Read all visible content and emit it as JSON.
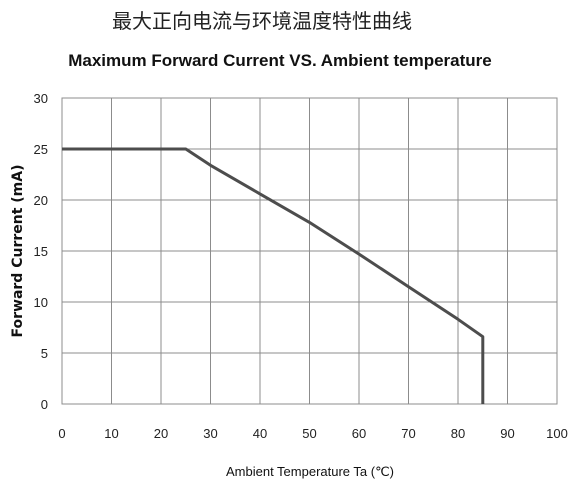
{
  "chart_data": {
    "type": "line",
    "title": "最大正向电流与环境温度特性曲线",
    "subtitle": "Maximum Forward Current VS. Ambient temperature",
    "xlabel": "Ambient Temperature Ta (℃)",
    "ylabel": "Forward Current (mA)",
    "xlim": [
      0,
      100
    ],
    "ylim": [
      0,
      30
    ],
    "x_ticks": [
      "0",
      "10",
      "20",
      "30",
      "40",
      "50",
      "60",
      "70",
      "80",
      "90",
      "100"
    ],
    "y_ticks": [
      "0",
      "5",
      "10",
      "15",
      "20",
      "25",
      "30"
    ],
    "grid": true,
    "legend": "none",
    "series": [
      {
        "color": "#4d4d4d",
        "points": [
          [
            0,
            25
          ],
          [
            25,
            25
          ],
          [
            30,
            23.4
          ],
          [
            40,
            20.6
          ],
          [
            50,
            17.8
          ],
          [
            60,
            14.7
          ],
          [
            70,
            11.5
          ],
          [
            80,
            8.3
          ],
          [
            85,
            6.6
          ],
          [
            85,
            0
          ]
        ]
      }
    ]
  }
}
